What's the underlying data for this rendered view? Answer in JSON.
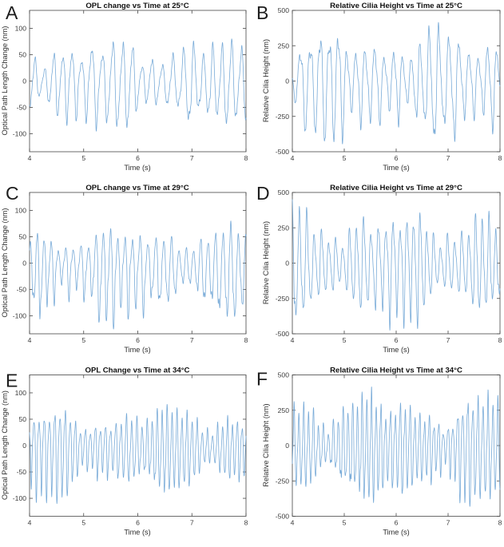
{
  "figure": {
    "background": "#ffffff",
    "line_color": "#79abd8",
    "axis_color": "#464646",
    "title_color": "#111111",
    "tick_label_color": "#3c3c3c"
  },
  "chart_data": [
    {
      "panel_label": "A",
      "type": "line",
      "title": "OPL change vs Time at 25°C",
      "xlabel": "Time (s)",
      "ylabel": "Optical Path Length Change (nm)",
      "temperature_c": 25,
      "xlim": [
        4,
        8
      ],
      "ylim": [
        -134,
        134
      ],
      "xticks": [
        4,
        5,
        6,
        7,
        8
      ],
      "yticks": [
        -100,
        -50,
        0,
        50,
        100
      ],
      "grid": false,
      "legend": null,
      "signal": {
        "dominant_freq_hz": 5.5,
        "positive_peak_nm": 80,
        "negative_peak_nm": -95,
        "typical_amplitude_nm": 55
      }
    },
    {
      "panel_label": "B",
      "type": "line",
      "title": "Relative Cilia Height vs Time at 25°C",
      "xlabel": "Time (s)",
      "ylabel": "Relative Cilia Height (nm)",
      "temperature_c": 25,
      "xlim": [
        4,
        8
      ],
      "ylim": [
        -500,
        500
      ],
      "xticks": [
        4,
        5,
        6,
        7,
        8
      ],
      "yticks": [
        -500,
        -250,
        0,
        250,
        500
      ],
      "grid": false,
      "legend": null,
      "signal": {
        "dominant_freq_hz": 5.5,
        "positive_peak_nm": 415,
        "negative_peak_nm": -445,
        "typical_amplitude_nm": 300
      }
    },
    {
      "panel_label": "C",
      "type": "line",
      "title": "OPL change vs Time at 29°C",
      "xlabel": "Time (s)",
      "ylabel": "Optical Path Length Change (nm)",
      "temperature_c": 29,
      "xlim": [
        4,
        8
      ],
      "ylim": [
        -134,
        134
      ],
      "xticks": [
        4,
        5,
        6,
        7,
        8
      ],
      "yticks": [
        -100,
        -50,
        0,
        50,
        100
      ],
      "grid": false,
      "legend": null,
      "signal": {
        "dominant_freq_hz": 7.3,
        "positive_peak_nm": 80,
        "negative_peak_nm": -125,
        "typical_amplitude_nm": 55
      }
    },
    {
      "panel_label": "D",
      "type": "line",
      "title": "Relative Cilia Height vs Time at 29°C",
      "xlabel": "Time (s)",
      "ylabel": "Relative Cilia Height (nm)",
      "temperature_c": 29,
      "xlim": [
        4,
        8
      ],
      "ylim": [
        -500,
        500
      ],
      "xticks": [
        4,
        5,
        6,
        7,
        8
      ],
      "yticks": [
        -500,
        -250,
        0,
        250,
        500
      ],
      "grid": false,
      "legend": null,
      "signal": {
        "dominant_freq_hz": 7.4,
        "positive_peak_nm": 450,
        "negative_peak_nm": -475,
        "typical_amplitude_nm": 330
      }
    },
    {
      "panel_label": "E",
      "type": "line",
      "title": "OPL Change vs Time at 34°C",
      "xlabel": "Time (s)",
      "ylabel": "Optical Path Length Change (nm)",
      "temperature_c": 34,
      "xlim": [
        4,
        8
      ],
      "ylim": [
        -134,
        134
      ],
      "xticks": [
        4,
        5,
        6,
        7,
        8
      ],
      "yticks": [
        -100,
        -50,
        0,
        50,
        100
      ],
      "grid": false,
      "legend": null,
      "signal": {
        "dominant_freq_hz": 10.7,
        "positive_peak_nm": 78,
        "negative_peak_nm": -110,
        "typical_amplitude_nm": 50
      }
    },
    {
      "panel_label": "F",
      "type": "line",
      "title": "Relative Cilia Height vs Time at 34°C",
      "xlabel": "Time (s)",
      "ylabel": "Relative Cilia Height (nm)",
      "temperature_c": 34,
      "xlim": [
        4,
        8
      ],
      "ylim": [
        -500,
        500
      ],
      "xticks": [
        4,
        5,
        6,
        7,
        8
      ],
      "yticks": [
        -500,
        -250,
        0,
        250,
        500
      ],
      "grid": false,
      "legend": null,
      "signal": {
        "dominant_freq_hz": 10.7,
        "positive_peak_nm": 415,
        "negative_peak_nm": -430,
        "typical_amplitude_nm": 310
      }
    }
  ]
}
